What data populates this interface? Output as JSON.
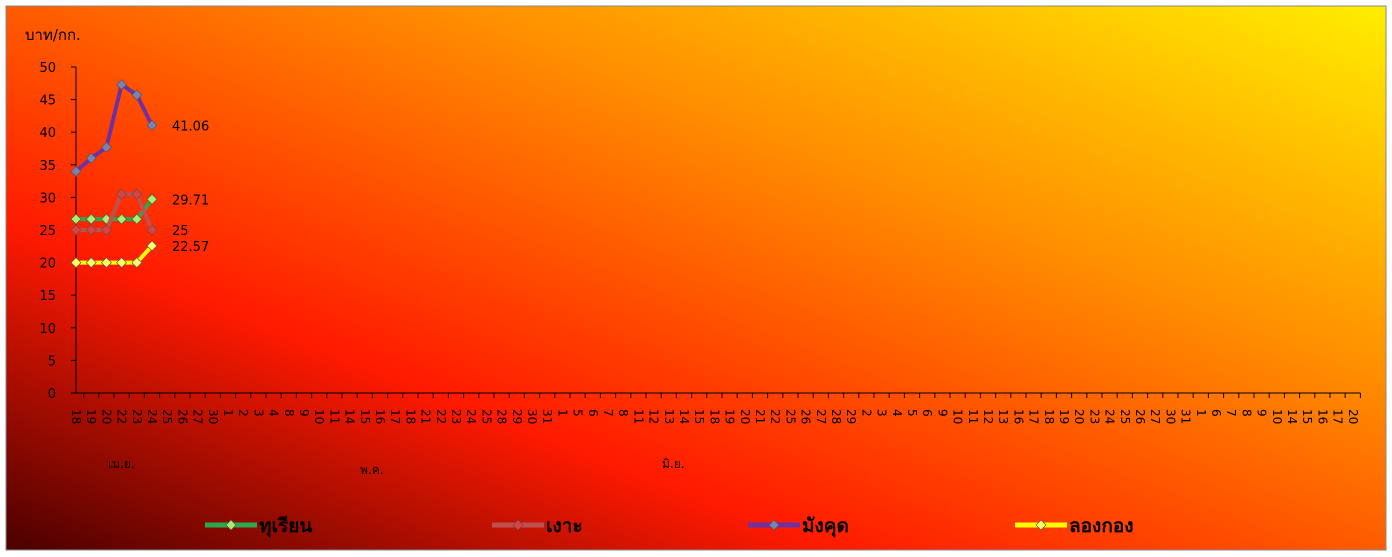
{
  "chart_data": {
    "type": "line",
    "y_label": "บาท/กก.",
    "categories": [
      "18",
      "19",
      "20",
      "22",
      "23",
      "24",
      "25",
      "26",
      "27",
      "30",
      "1",
      "2",
      "3",
      "4",
      "8",
      "9",
      "10",
      "11",
      "14",
      "15",
      "16",
      "17",
      "18",
      "21",
      "22",
      "23",
      "24",
      "25",
      "28",
      "29",
      "30",
      "31",
      "1",
      "5",
      "6",
      "7",
      "8",
      "11",
      "12",
      "13",
      "14",
      "15",
      "18",
      "19",
      "20",
      "21",
      "22",
      "25",
      "26",
      "27",
      "28",
      "29",
      "2",
      "3",
      "4",
      "5",
      "6",
      "9",
      "10",
      "11",
      "12",
      "13",
      "16",
      "17",
      "18",
      "19",
      "20",
      "23",
      "24",
      "25",
      "26",
      "27",
      "30",
      "31",
      "1",
      "6",
      "7",
      "8",
      "9",
      "10",
      "14",
      "15",
      "16",
      "17",
      "20"
    ],
    "month_labels": [
      "เม.ย.",
      "พ.ค.",
      "มิ.ย."
    ],
    "ylim": [
      0,
      50
    ],
    "yticks": [
      0,
      5,
      10,
      15,
      20,
      25,
      30,
      35,
      40,
      45,
      50
    ],
    "series": [
      {
        "name": "ทุเรียน",
        "color": "#2ea84a",
        "values": [
          26.67,
          26.67,
          26.67,
          26.67,
          26.67,
          29.71,
          null,
          null,
          null,
          null,
          null,
          null,
          null,
          null,
          null,
          null,
          null,
          null,
          null,
          null,
          null,
          null,
          null,
          null,
          null,
          null,
          null,
          null,
          null,
          null,
          null,
          null,
          null,
          null,
          null,
          null,
          null,
          null,
          null,
          null,
          null,
          null,
          null,
          null,
          null,
          null,
          null,
          null,
          null,
          null,
          null,
          null,
          null,
          null,
          null,
          null,
          null,
          null,
          null,
          null,
          null,
          null,
          null,
          null,
          null,
          null,
          null,
          null,
          null,
          null,
          null,
          null,
          null,
          null,
          null,
          null,
          null,
          null,
          null,
          null,
          null,
          null,
          null,
          null,
          null
        ]
      },
      {
        "name": "เงาะ",
        "color": "#c0504d",
        "values": [
          25,
          25,
          25,
          30.5,
          30.5,
          25,
          null,
          null,
          null,
          null,
          null,
          null,
          null,
          null,
          null,
          null,
          null,
          null,
          null,
          null,
          null,
          null,
          null,
          null,
          null,
          null,
          null,
          null,
          null,
          null,
          null,
          null,
          null,
          null,
          null,
          null,
          null,
          null,
          null,
          null,
          null,
          null,
          null,
          null,
          null,
          null,
          null,
          null,
          null,
          null,
          null,
          null,
          null,
          null,
          null,
          null,
          null,
          null,
          null,
          null,
          null,
          null,
          null,
          null,
          null,
          null,
          null,
          null,
          null,
          null,
          null,
          null,
          null,
          null,
          null,
          null,
          null,
          null,
          null,
          null,
          null,
          null,
          null,
          null,
          null
        ]
      },
      {
        "name": "มังคุด",
        "color": "#7030a0",
        "values": [
          34,
          36,
          37.7,
          47.3,
          45.7,
          41.06,
          null,
          null,
          null,
          null,
          null,
          null,
          null,
          null,
          null,
          null,
          null,
          null,
          null,
          null,
          null,
          null,
          null,
          null,
          null,
          null,
          null,
          null,
          null,
          null,
          null,
          null,
          null,
          null,
          null,
          null,
          null,
          null,
          null,
          null,
          null,
          null,
          null,
          null,
          null,
          null,
          null,
          null,
          null,
          null,
          null,
          null,
          null,
          null,
          null,
          null,
          null,
          null,
          null,
          null,
          null,
          null,
          null,
          null,
          null,
          null,
          null,
          null,
          null,
          null,
          null,
          null,
          null,
          null,
          null,
          null,
          null,
          null,
          null,
          null,
          null,
          null,
          null,
          null,
          null
        ]
      },
      {
        "name": "ลองกอง",
        "color": "#ffff00",
        "values": [
          20,
          20,
          20,
          20,
          20,
          22.57,
          null,
          null,
          null,
          null,
          null,
          null,
          null,
          null,
          null,
          null,
          null,
          null,
          null,
          null,
          null,
          null,
          null,
          null,
          null,
          null,
          null,
          null,
          null,
          null,
          null,
          null,
          null,
          null,
          null,
          null,
          null,
          null,
          null,
          null,
          null,
          null,
          null,
          null,
          null,
          null,
          null,
          null,
          null,
          null,
          null,
          null,
          null,
          null,
          null,
          null,
          null,
          null,
          null,
          null,
          null,
          null,
          null,
          null,
          null,
          null,
          null,
          null,
          null,
          null,
          null,
          null,
          null,
          null,
          null,
          null,
          null,
          null,
          null,
          null,
          null,
          null,
          null,
          null,
          null
        ]
      }
    ]
  }
}
